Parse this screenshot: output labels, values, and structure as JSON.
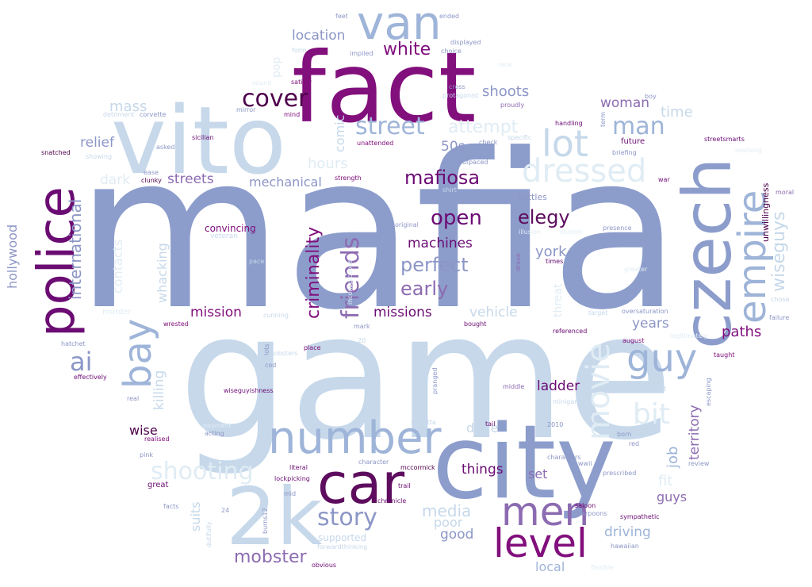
{
  "words": {
    "mafia": "mafia",
    "game": "game",
    "fact": "fact",
    "city": "city",
    "vito": "vito",
    "czech": "czech",
    "police": "police",
    "car": "car",
    "number": "number",
    "van": "van",
    "k2": "2k",
    "level": "level",
    "empire": "empire",
    "men": "men",
    "lot": "lot",
    "dressed": "dressed",
    "movie": "movie",
    "guy": "guy",
    "bay": "bay",
    "cover": "cover",
    "street": "street",
    "story": "story",
    "man": "man",
    "mafiosa": "mafiosa",
    "open": "open",
    "elegy": "elegy",
    "friends": "friends",
    "criminality": "criminality",
    "ai": "ai",
    "perfect": "perfect",
    "early": "early",
    "bit": "bit",
    "shooting": "shooting",
    "mobster": "mobster",
    "white": "white",
    "attempt": "attempt",
    "international": "international",
    "wiseguys": "wiseguys",
    "location": "location",
    "shoots": "shoots",
    "mass": "mass",
    "woman": "woman",
    "time": "time",
    "relief": "relief",
    "hours": "hours",
    "streets": "streets",
    "mechanical": "mechanical",
    "comic": "comic",
    "fifties": "50s",
    "dark": "dark",
    "machines": "machines",
    "york": "york",
    "missions": "missions",
    "mission": "mission",
    "paths": "paths",
    "years": "years",
    "vehicle": "vehicle",
    "ladder": "ladder",
    "killing": "killing",
    "whacking": "whacking",
    "contacts": "contacts",
    "hollywood": "hollywood",
    "job": "job",
    "territory": "territory",
    "fit": "fit",
    "guys": "guys",
    "driving": "driving",
    "media": "media",
    "poor": "poor",
    "good": "good",
    "things": "things",
    "set": "set",
    "wise": "wise",
    "drive": "drive",
    "suits": "suits",
    "local": "local",
    "supported": "supported",
    "unwillingness": "unwillingness",
    "threat": "threat",
    "pop": "pop",
    "convincing": "convincing",
    "veteran": "veteran",
    "battles": "battles",
    "feet": "feet",
    "ended": "ended",
    "form": "form",
    "implied": "implied",
    "displayed": "displayed",
    "choice": "choice",
    "satisfy": "satisfy",
    "cross": "cross",
    "protagonist": "protagonist",
    "proudly": "proudly",
    "boy": "boy",
    "term": "term",
    "corvette": "corvette",
    "detriment": "detriment",
    "mirror": "mirror",
    "mind": "mind",
    "handling": "handling",
    "sicilian": "sicilian",
    "unattended": "unattended",
    "check": "check",
    "specific": "specific",
    "future": "future",
    "streetsmarts": "streetsmarts",
    "asked": "asked",
    "snatched": "snatched",
    "showing": "showing",
    "outpaced": "outpaced",
    "briefing": "briefing",
    "realising": "realising",
    "ease": "ease",
    "clunky": "clunky",
    "strength": "strength",
    "shirt": "shirt",
    "war": "war",
    "moral": "moral",
    "illusion": "illusion",
    "chronic": "chronic",
    "original": "original",
    "presence": "presence",
    "pace": "pace",
    "drove": "drove",
    "times": "times",
    "murder": "murder",
    "cunning": "cunning",
    "oversaturation": "oversaturation",
    "chose": "chose",
    "wrested": "wrested",
    "mark": "mark",
    "bought": "bought",
    "target": "target",
    "failure": "failure",
    "hatchet": "hatchet",
    "referenced": "referenced",
    "august": "august",
    "place": "place",
    "taught": "taught",
    "lots": "lots",
    "cod": "cod",
    "mobsters": "mobsters",
    "effectively": "effectively",
    "real": "real",
    "wiseguyishness": "wiseguyishness",
    "read": "read",
    "pranged": "pranged",
    "middle": "middle",
    "experience": "experience",
    "escaping": "escaping",
    "minigame": "minigame",
    "realised": "realised",
    "scaletta": "scaletta",
    "acting": "acting",
    "payment": "payment",
    "tail": "tail",
    "year2010": "2010",
    "born": "born",
    "red": "red",
    "pink": "pink",
    "character": "character",
    "characters": "characters",
    "review": "review",
    "literal": "literal",
    "mccormick": "mccormick",
    "wwii": "wwii",
    "prescribed": "prescribed",
    "lockpicking": "lockpicking",
    "trail": "trail",
    "great": "great",
    "mid": "mid",
    "chronicle": "chronicle",
    "saloon": "saloon",
    "harpoons": "harpoons",
    "sympathetic": "sympathetic",
    "facts": "facts",
    "n24": "24",
    "burns12": "burns12",
    "dutifully": "dutifully",
    "forwardthinking": "forwardthinking",
    "hawaiian": "hawaiian",
    "obvious": "obvious",
    "n20": "20",
    "inconspicuous": "inconspicuous",
    "greater": "greater",
    "legitimately": "legitimately",
    "flexible": "flexible",
    "race": "race",
    "sound": "sound"
  },
  "colors": {
    "deep_purple": "#6b0c73",
    "purple": "#8a2a8e",
    "mid_purple": "#8c6bb1",
    "slate_blue": "#8c96c6",
    "steel_blue": "#9eb4d8",
    "light_blue": "#c3d5e8",
    "pale_blue": "#e0ecf4"
  }
}
